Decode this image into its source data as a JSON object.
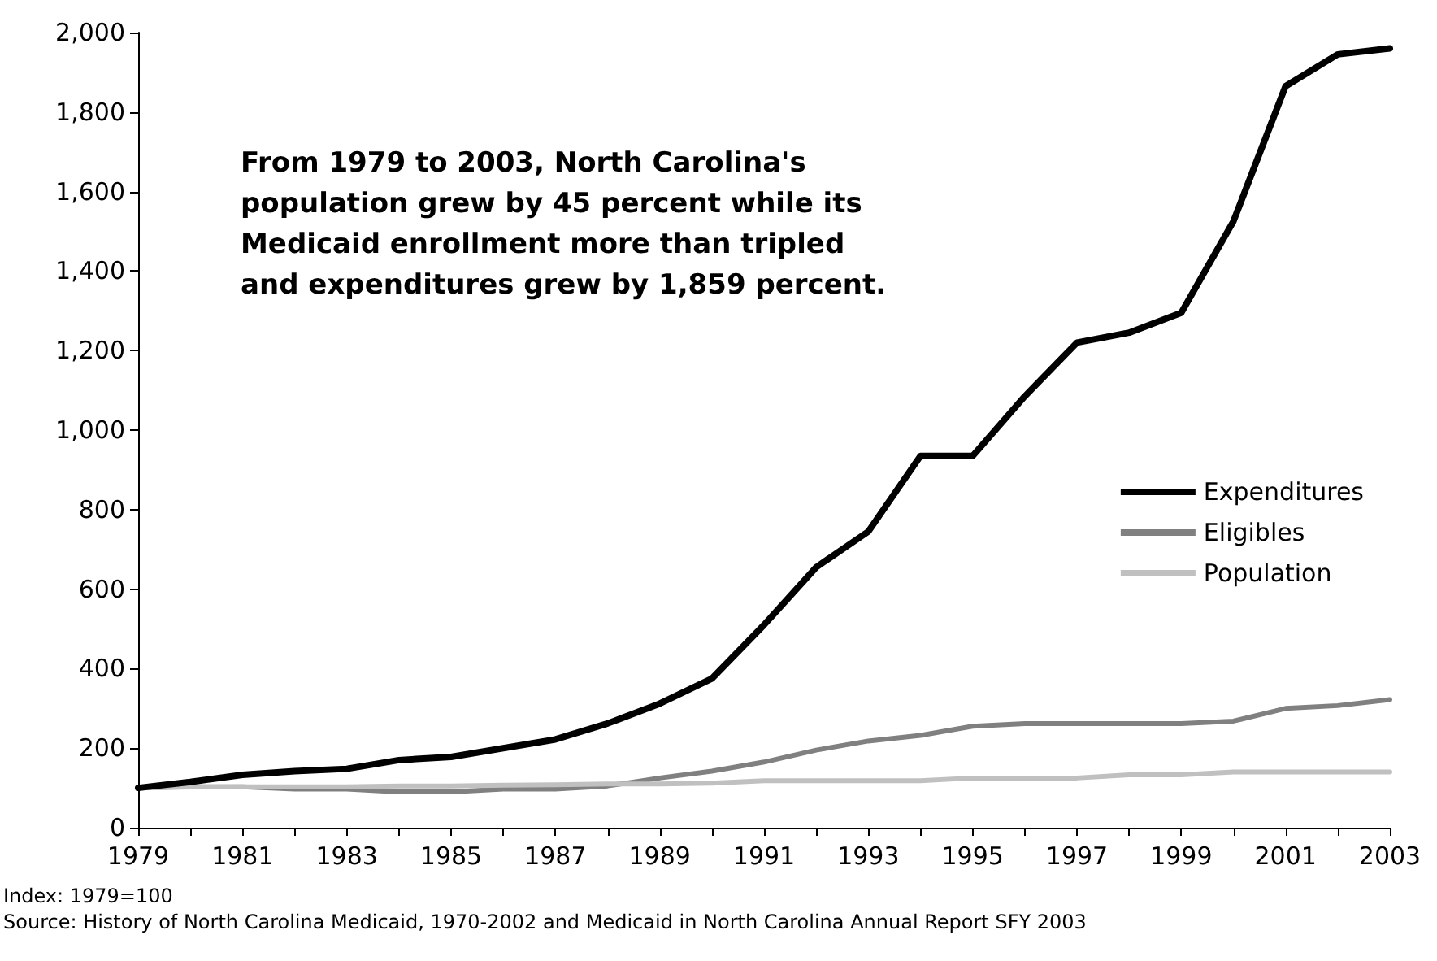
{
  "chart_data": {
    "type": "line",
    "x": [
      1979,
      1980,
      1981,
      1982,
      1983,
      1984,
      1985,
      1986,
      1987,
      1988,
      1989,
      1990,
      1991,
      1992,
      1993,
      1994,
      1995,
      1996,
      1997,
      1998,
      1999,
      2000,
      2001,
      2002,
      2003
    ],
    "series": [
      {
        "name": "Expenditures",
        "color": "#000000",
        "values": [
          100,
          115,
          133,
          142,
          148,
          170,
          178,
          200,
          222,
          262,
          312,
          375,
          510,
          655,
          745,
          935,
          935,
          1085,
          1220,
          1245,
          1295,
          1525,
          1865,
          1945,
          1960
        ]
      },
      {
        "name": "Eligibles",
        "color": "#808080",
        "values": [
          100,
          103,
          103,
          97,
          97,
          90,
          90,
          97,
          97,
          105,
          125,
          142,
          165,
          195,
          218,
          232,
          255,
          262,
          262,
          262,
          262,
          268,
          300,
          307,
          322
        ]
      },
      {
        "name": "Population",
        "color": "#c0c0c0",
        "values": [
          100,
          102,
          103,
          103,
          103,
          105,
          105,
          107,
          108,
          110,
          110,
          112,
          118,
          118,
          118,
          118,
          125,
          125,
          125,
          133,
          133,
          140,
          140,
          140,
          140
        ]
      }
    ],
    "xlim": [
      1979,
      2003
    ],
    "xticks": [
      1979,
      {
        "value": 1980,
        "label": null
      },
      1981,
      {
        "value": 1982,
        "label": null
      },
      1983,
      {
        "value": 1984,
        "label": null
      },
      1985,
      {
        "value": 1986,
        "label": null
      },
      1987,
      {
        "value": 1988,
        "label": null
      },
      1989,
      {
        "value": 1990,
        "label": null
      },
      1991,
      {
        "value": 1992,
        "label": null
      },
      1993,
      {
        "value": 1994,
        "label": null
      },
      1995,
      {
        "value": 1996,
        "label": null
      },
      1997,
      {
        "value": 1998,
        "label": null
      },
      1999,
      {
        "value": 2000,
        "label": null
      },
      2001,
      {
        "value": 2002,
        "label": null
      },
      2003
    ],
    "ylim": [
      0,
      2000
    ],
    "yticks": [
      0,
      200,
      400,
      600,
      800,
      {
        "value": 1000,
        "label": "1,000"
      },
      {
        "value": 1200,
        "label": "1,200"
      },
      {
        "value": 1400,
        "label": "1,400"
      },
      {
        "value": 1600,
        "label": "1,600"
      },
      {
        "value": 1800,
        "label": "1,800"
      },
      {
        "value": 2000,
        "label": "2,000"
      }
    ],
    "annotations": [
      "From 1979 to 2003, North Carolina's population grew by 45 percent while its Medicaid enrollment more than tripled and expenditures grew by 1,859 percent.",
      "Index: 1979=100",
      "Source: History of North Carolina Medicaid, 1970-2002 and Medicaid in North Carolina Annual Report SFY 2003"
    ],
    "legend": "right",
    "grid": false,
    "marker": "none",
    "line_style": "solid"
  }
}
